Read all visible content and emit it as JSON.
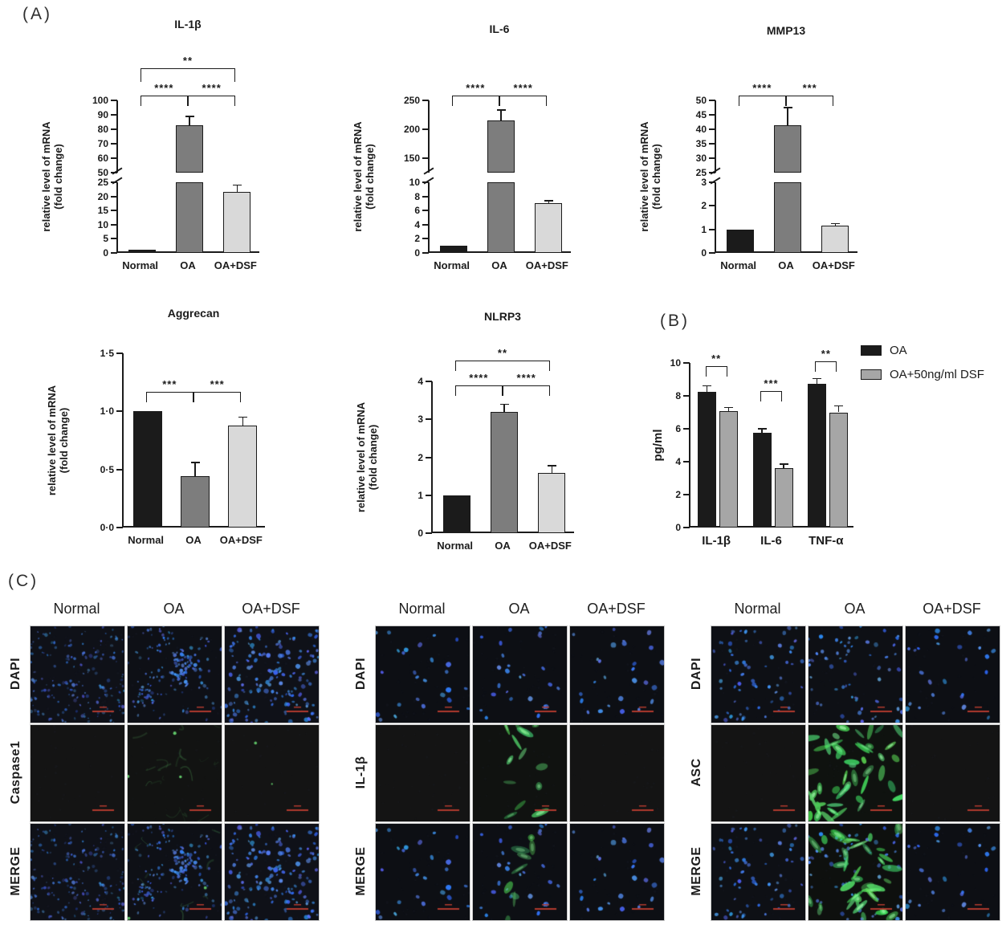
{
  "panel_labels": {
    "a": "(A)",
    "b": "(B)",
    "c": "(C)"
  },
  "colors": {
    "bar_black": "#1b1b1b",
    "bar_gray": "#7d7d7d",
    "bar_lightgray": "#d9d9d9",
    "bar_midgray": "#a6a6a6",
    "axis_ink": "#1b1b1b",
    "scale_bar_red": "#b03a2e",
    "nuclei_blue": "#3b6ee0",
    "signal_green": "#46c455",
    "micrograph_bg": "#131313"
  },
  "chart_data": [
    {
      "id": "il1b",
      "type": "bar",
      "title": "IL-1β",
      "ylabel_lines": [
        "relative level of mRNA",
        "(fold change)"
      ],
      "categories": [
        "Normal",
        "OA",
        "OA+DSF"
      ],
      "values": [
        1,
        83,
        21.5
      ],
      "errors": [
        0,
        6,
        2.5
      ],
      "bar_color_keys": [
        "bar_black",
        "bar_gray",
        "bar_lightgray"
      ],
      "axis_break": true,
      "segments": [
        {
          "range": [
            0,
            25
          ],
          "ticks": [
            0,
            5,
            10,
            15,
            20,
            25
          ]
        },
        {
          "range": [
            50,
            100
          ],
          "ticks": [
            50,
            60,
            70,
            80,
            90,
            100
          ]
        }
      ],
      "significance": [
        {
          "from": 0,
          "to": 1,
          "label": "****",
          "row": 0
        },
        {
          "from": 1,
          "to": 2,
          "label": "****",
          "row": 0
        },
        {
          "from": 0,
          "to": 2,
          "label": "**",
          "row": 1
        }
      ]
    },
    {
      "id": "il6",
      "type": "bar",
      "title": "IL-6",
      "ylabel_lines": [
        "relative level of mRNA",
        "(fold change)"
      ],
      "categories": [
        "Normal",
        "OA",
        "OA+DSF"
      ],
      "values": [
        1,
        215,
        7
      ],
      "errors": [
        0,
        18,
        0.4
      ],
      "bar_color_keys": [
        "bar_black",
        "bar_gray",
        "bar_lightgray"
      ],
      "axis_break": true,
      "segments": [
        {
          "range": [
            0,
            10
          ],
          "ticks": [
            0,
            2,
            4,
            6,
            8,
            10
          ]
        },
        {
          "range": [
            125,
            250
          ],
          "ticks": [
            150,
            200,
            250
          ]
        }
      ],
      "significance": [
        {
          "from": 0,
          "to": 1,
          "label": "****",
          "row": 0
        },
        {
          "from": 1,
          "to": 2,
          "label": "****",
          "row": 0
        }
      ]
    },
    {
      "id": "mmp13",
      "type": "bar",
      "title": "MMP13",
      "ylabel_lines": [
        "relative level of mRNA",
        "(fold change)"
      ],
      "categories": [
        "Normal",
        "OA",
        "OA+DSF"
      ],
      "values": [
        1,
        41.5,
        1.15
      ],
      "errors": [
        0,
        6,
        0.1
      ],
      "bar_color_keys": [
        "bar_black",
        "bar_gray",
        "bar_lightgray"
      ],
      "axis_break": true,
      "segments": [
        {
          "range": [
            0,
            3
          ],
          "ticks": [
            0,
            1,
            2,
            3
          ]
        },
        {
          "range": [
            25,
            50
          ],
          "ticks": [
            25,
            30,
            35,
            40,
            45,
            50
          ]
        }
      ],
      "significance": [
        {
          "from": 0,
          "to": 1,
          "label": "****",
          "row": 0
        },
        {
          "from": 1,
          "to": 2,
          "label": "***",
          "row": 0
        }
      ]
    },
    {
      "id": "aggrecan",
      "type": "bar",
      "title": "Aggrecan",
      "ylabel_lines": [
        "relative level of mRNA",
        "(fold change)"
      ],
      "categories": [
        "Normal",
        "OA",
        "OA+DSF"
      ],
      "values": [
        1.0,
        0.44,
        0.88
      ],
      "errors": [
        0,
        0.12,
        0.07
      ],
      "bar_color_keys": [
        "bar_black",
        "bar_gray",
        "bar_lightgray"
      ],
      "axis_break": false,
      "ylim": [
        0,
        1.5
      ],
      "ticks": [
        0,
        0.5,
        1.0,
        1.5
      ],
      "tick_labels": [
        "0·0",
        "0·5",
        "1·0",
        "1·5"
      ],
      "significance": [
        {
          "from": 0,
          "to": 1,
          "label": "***",
          "y": 1.17
        },
        {
          "from": 1,
          "to": 2,
          "label": "***",
          "y": 1.17
        }
      ]
    },
    {
      "id": "nlrp3",
      "type": "bar",
      "title": "NLRP3",
      "ylabel_lines": [
        "relative level of mRNA",
        "(fold change)"
      ],
      "categories": [
        "Normal",
        "OA",
        "OA+DSF"
      ],
      "values": [
        1.0,
        3.2,
        1.58
      ],
      "errors": [
        0,
        0.2,
        0.2
      ],
      "bar_color_keys": [
        "bar_black",
        "bar_gray",
        "bar_lightgray"
      ],
      "axis_break": false,
      "ylim": [
        0,
        4
      ],
      "ticks": [
        0,
        1,
        2,
        3,
        4
      ],
      "tick_labels": [
        "0",
        "1",
        "2",
        "3",
        "4"
      ],
      "significance": [
        {
          "from": 0,
          "to": 1,
          "label": "****",
          "y": 3.9
        },
        {
          "from": 1,
          "to": 2,
          "label": "****",
          "y": 3.9
        },
        {
          "from": 0,
          "to": 2,
          "label": "**",
          "y": 4.55
        }
      ]
    },
    {
      "id": "elisa",
      "type": "grouped-bar",
      "title": "",
      "ylabel_lines": [
        "pg/ml"
      ],
      "categories": [
        "IL-1β",
        "IL-6",
        "TNF-α"
      ],
      "series": [
        {
          "name": "OA",
          "color_key": "bar_black",
          "values": [
            8.25,
            5.75,
            8.75
          ],
          "errors": [
            0.35,
            0.25,
            0.3
          ]
        },
        {
          "name": "OA+50ng/ml DSF",
          "color_key": "bar_midgray",
          "values": [
            7.05,
            3.6,
            7.0
          ],
          "errors": [
            0.25,
            0.25,
            0.4
          ]
        }
      ],
      "ylim": [
        0,
        10
      ],
      "ticks": [
        0,
        2,
        4,
        6,
        8,
        10
      ],
      "tick_labels": [
        "0",
        "2",
        "4",
        "6",
        "8",
        "10"
      ],
      "significance": [
        {
          "cat": 0,
          "label": "**",
          "y": 9.8
        },
        {
          "cat": 1,
          "label": "***",
          "y": 8.3
        },
        {
          "cat": 2,
          "label": "**",
          "y": 10.1
        }
      ],
      "legend": [
        {
          "label": "OA",
          "color_key": "bar_black"
        },
        {
          "label": "OA+50ng/ml DSF",
          "color_key": "bar_midgray"
        }
      ]
    }
  ],
  "panel_c": {
    "column_headers": [
      "Normal",
      "OA",
      "OA+DSF"
    ],
    "grids": [
      {
        "id": "caspase1",
        "rows": [
          {
            "label": "DAPI",
            "cells": [
              {
                "style": "dapi_dense_dim",
                "seed": 1
              },
              {
                "style": "dapi_cluster",
                "seed": 2
              },
              {
                "style": "dapi_dense_bright",
                "seed": 3
              }
            ]
          },
          {
            "label": "Caspase1",
            "cells": [
              {
                "style": "black_blank",
                "seed": 4
              },
              {
                "style": "green_wisps",
                "seed": 5
              },
              {
                "style": "black_speck",
                "seed": 6
              }
            ]
          },
          {
            "label": "MERGE",
            "cells": [
              {
                "style": "dapi_dense_dim",
                "seed": 1
              },
              {
                "style": "merge_cluster_green",
                "seed": 2
              },
              {
                "style": "dapi_dense_bright",
                "seed": 3
              }
            ]
          }
        ]
      },
      {
        "id": "il1b_if",
        "rows": [
          {
            "label": "DAPI",
            "cells": [
              {
                "style": "dapi_sparse",
                "seed": 7
              },
              {
                "style": "dapi_sparse",
                "seed": 8
              },
              {
                "style": "dapi_sparse",
                "seed": 9
              }
            ]
          },
          {
            "label": "IL-1β",
            "cells": [
              {
                "style": "black_blank",
                "seed": 10
              },
              {
                "style": "green_blobs",
                "seed": 11
              },
              {
                "style": "black_blank",
                "seed": 12
              }
            ]
          },
          {
            "label": "MERGE",
            "cells": [
              {
                "style": "dapi_sparse",
                "seed": 7
              },
              {
                "style": "merge_sparse_green",
                "seed": 8
              },
              {
                "style": "dapi_sparse",
                "seed": 9
              }
            ]
          }
        ]
      },
      {
        "id": "asc",
        "rows": [
          {
            "label": "DAPI",
            "cells": [
              {
                "style": "dapi_medium",
                "seed": 13
              },
              {
                "style": "dapi_medium",
                "seed": 14
              },
              {
                "style": "dapi_sparse",
                "seed": 15
              }
            ]
          },
          {
            "label": "ASC",
            "cells": [
              {
                "style": "black_blank",
                "seed": 16
              },
              {
                "style": "green_strong",
                "seed": 17
              },
              {
                "style": "black_blank",
                "seed": 18
              }
            ]
          },
          {
            "label": "MERGE",
            "cells": [
              {
                "style": "dapi_medium",
                "seed": 13
              },
              {
                "style": "merge_green_strong",
                "seed": 14
              },
              {
                "style": "dapi_sparse",
                "seed": 15
              }
            ]
          }
        ]
      }
    ]
  }
}
